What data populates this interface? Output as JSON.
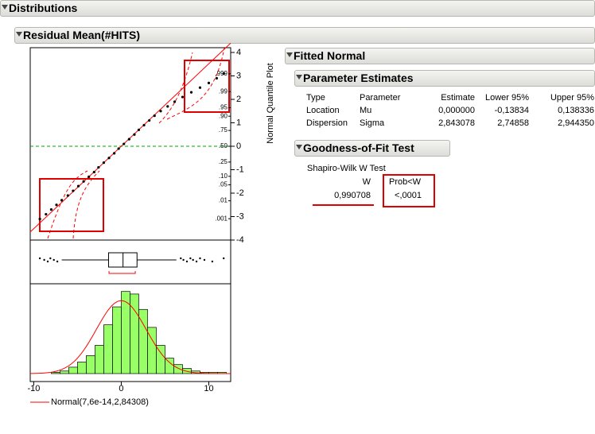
{
  "header": {
    "title": "Distributions",
    "subtitle": "Residual Mean(#HITS)"
  },
  "chart_data": [
    {
      "type": "scatter",
      "title": "Normal Quantile Plot",
      "x": [
        -9.3,
        -8.6,
        -8.0,
        -7.4,
        -6.8,
        -6.1,
        -5.5,
        -4.9,
        -4.3,
        -3.7,
        -3.1,
        -2.6,
        -2.0,
        -1.4,
        -0.8,
        -0.3,
        0.3,
        0.9,
        1.5,
        2.0,
        2.6,
        3.2,
        3.8,
        4.5,
        5.3,
        6.1,
        7.0,
        8.0,
        9.0,
        10.0,
        10.9,
        11.7
      ],
      "values": [
        -3.1,
        -2.9,
        -2.7,
        -2.5,
        -2.3,
        -2.1,
        -1.9,
        -1.7,
        -1.5,
        -1.3,
        -1.1,
        -0.9,
        -0.7,
        -0.5,
        -0.3,
        -0.1,
        0.1,
        0.3,
        0.5,
        0.7,
        0.9,
        1.1,
        1.3,
        1.5,
        1.7,
        1.9,
        2.1,
        2.3,
        2.5,
        2.7,
        2.9,
        3.1
      ],
      "color": "#000000",
      "xlim": [
        -10.4,
        12.5
      ],
      "ylim": [
        -4,
        4
      ],
      "yticks": [
        -4,
        -3,
        -2,
        -1,
        0,
        1,
        2,
        3,
        4
      ],
      "prob_ticks": [
        {
          "value": 3.09,
          "label": ".999"
        },
        {
          "value": 2.326,
          "label": ".99"
        },
        {
          "value": 1.645,
          "label": ".95"
        },
        {
          "value": 1.282,
          "label": ".90"
        },
        {
          "value": 0.674,
          "label": ".75"
        },
        {
          "value": 0,
          "label": ".50"
        },
        {
          "value": -0.674,
          "label": ".25"
        },
        {
          "value": -1.282,
          "label": ".10"
        },
        {
          "value": -1.645,
          "label": ".05"
        },
        {
          "value": -2.326,
          "label": ".01"
        },
        {
          "value": -3.09,
          "label": ".001"
        }
      ]
    },
    {
      "type": "box",
      "xlim": [
        -10.4,
        12.5
      ],
      "whisker_low": -6.8,
      "q1": -1.45,
      "median": 0.2,
      "q3": 1.8,
      "whisker_high": 6.3,
      "shortest_half": [
        -1.4,
        1.6
      ],
      "outliers": [
        -9.3,
        -8.8,
        -8.4,
        -8.1,
        -7.7,
        -7.3,
        6.8,
        7.1,
        7.5,
        7.9,
        8.2,
        8.6,
        9.0,
        9.5,
        10.4,
        11.7
      ]
    },
    {
      "type": "histogram",
      "bins": [
        -8,
        -7,
        -6,
        -5,
        -4,
        -3,
        -2,
        -1,
        0,
        1,
        2,
        3,
        4,
        5,
        6,
        7,
        8,
        9,
        10,
        11,
        12
      ],
      "counts": [
        1,
        2,
        5,
        9,
        14,
        22,
        38,
        52,
        64,
        62,
        50,
        36,
        22,
        12,
        7,
        4,
        2,
        1,
        1,
        1
      ],
      "color": "#99ff66",
      "xlim": [
        -10.4,
        12.5
      ],
      "xticks": [
        -10,
        0,
        10
      ],
      "ylim": [
        0,
        70
      ],
      "fit": {
        "label": "Normal(7,6e-14,2,84308)",
        "mean": 7.6e-14,
        "sd": 2.84308,
        "color": "#ff0000"
      }
    }
  ],
  "fitted": {
    "title": "Fitted Normal",
    "estimates": {
      "title": "Parameter Estimates",
      "columns": [
        "Type",
        "Parameter",
        "Estimate",
        "Lower 95%",
        "Upper 95%"
      ],
      "rows": [
        [
          "Location",
          "Mu",
          "0,000000",
          "-0,13834",
          "0,138336"
        ],
        [
          "Dispersion",
          "Sigma",
          "2,843078",
          "2,74858",
          "2,944350"
        ]
      ]
    },
    "gof": {
      "title": "Goodness-of-Fit Test",
      "test": "Shapiro-Wilk W Test",
      "columns": [
        "W",
        "Prob<W"
      ],
      "row": [
        "0,990708",
        "<,0001"
      ]
    }
  }
}
